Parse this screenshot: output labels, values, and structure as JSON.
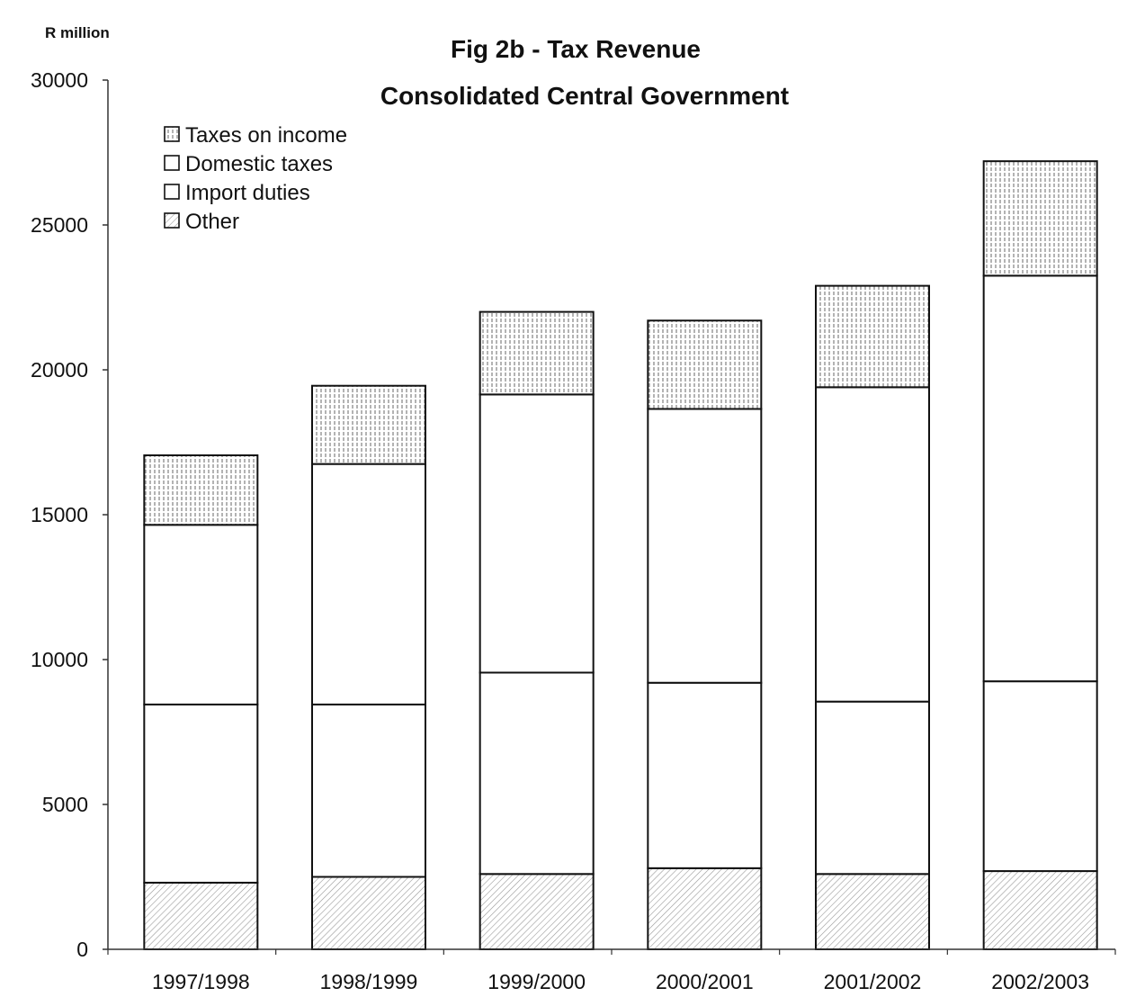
{
  "chart_data": {
    "type": "bar",
    "stacked": true,
    "title": "Fig 2b - Tax Revenue",
    "subtitle": "Consolidated Central Government",
    "ylabel": "R million",
    "xlabel": "",
    "ylim": [
      0,
      30000
    ],
    "yticks": [
      0,
      5000,
      10000,
      15000,
      20000,
      25000,
      30000
    ],
    "categories": [
      "1997/1998",
      "1998/1999",
      "1999/2000",
      "2000/2001",
      "2001/2002",
      "2002/2003"
    ],
    "legend_position": "top-left",
    "grid": false,
    "series": [
      {
        "name": "Other",
        "values": [
          2300,
          2500,
          2600,
          2800,
          2600,
          2700
        ],
        "pattern": "diagonal"
      },
      {
        "name": "Import duties",
        "values": [
          6150,
          5950,
          6950,
          6400,
          5950,
          6550
        ],
        "pattern": "none"
      },
      {
        "name": "Domestic taxes",
        "values": [
          6200,
          8300,
          9600,
          9450,
          10850,
          14000
        ],
        "pattern": "none"
      },
      {
        "name": "Taxes on income",
        "values": [
          2400,
          2700,
          2850,
          3050,
          3500,
          3950
        ],
        "pattern": "vertical"
      }
    ],
    "legend_order": [
      "Taxes on income",
      "Domestic taxes",
      "Import duties",
      "Other"
    ]
  }
}
